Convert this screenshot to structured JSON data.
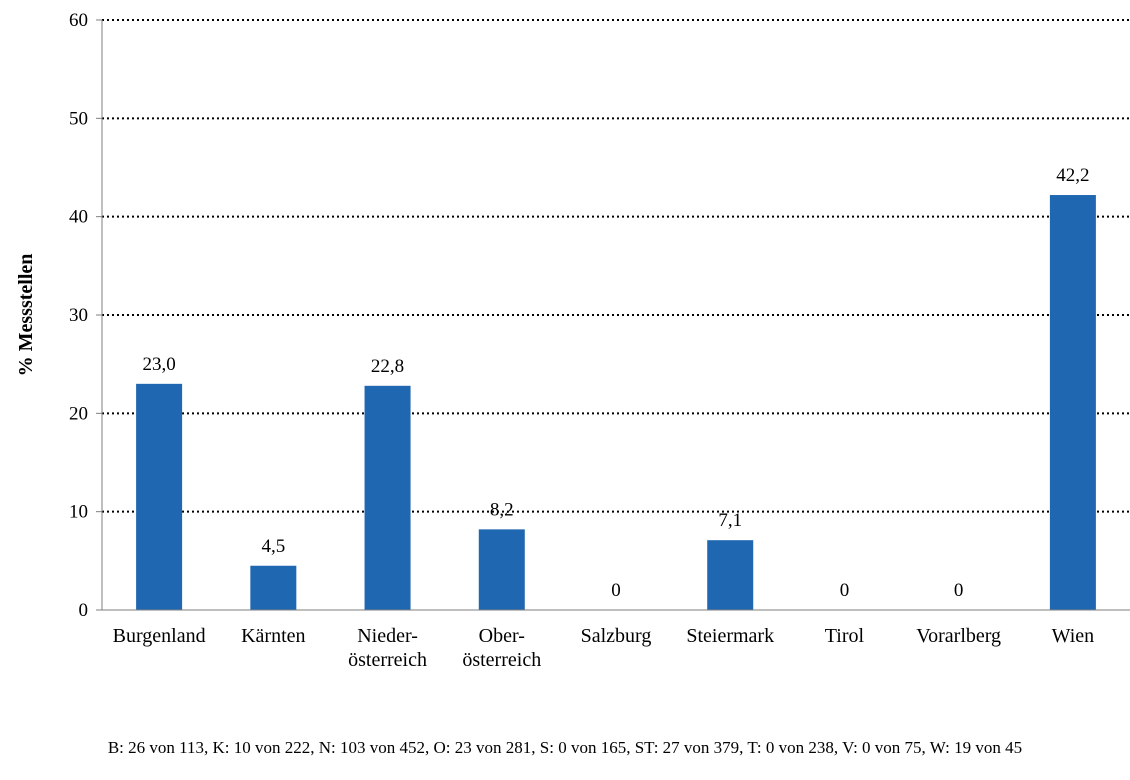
{
  "chart_data": {
    "type": "bar",
    "title": "",
    "xlabel": "",
    "ylabel": "% Messstellen",
    "ylim": [
      0,
      60
    ],
    "yticks": [
      0,
      10,
      20,
      30,
      40,
      50,
      60
    ],
    "grid": true,
    "categories": [
      [
        "Burgenland"
      ],
      [
        "Kärnten"
      ],
      [
        "Nieder-",
        "österreich"
      ],
      [
        "Ober-",
        "österreich"
      ],
      [
        "Salzburg"
      ],
      [
        "Steiermark"
      ],
      [
        "Tirol"
      ],
      [
        "Vorarlberg"
      ],
      [
        "Wien"
      ]
    ],
    "values": [
      23.0,
      4.5,
      22.8,
      8.2,
      0,
      7.1,
      0,
      0,
      42.2
    ],
    "value_labels": [
      "23,0",
      "4,5",
      "22,8",
      "8,2",
      "0",
      "7,1",
      "0",
      "0",
      "42,2"
    ],
    "bar_color": "#1f67b1",
    "footnote": "B: 26 von 113, K: 10 von 222, N: 103 von 452, O: 23 von 281, S: 0 von 165, ST: 27 von 379, T: 0 von 238, V: 0 von 75, W: 19 von 45"
  }
}
